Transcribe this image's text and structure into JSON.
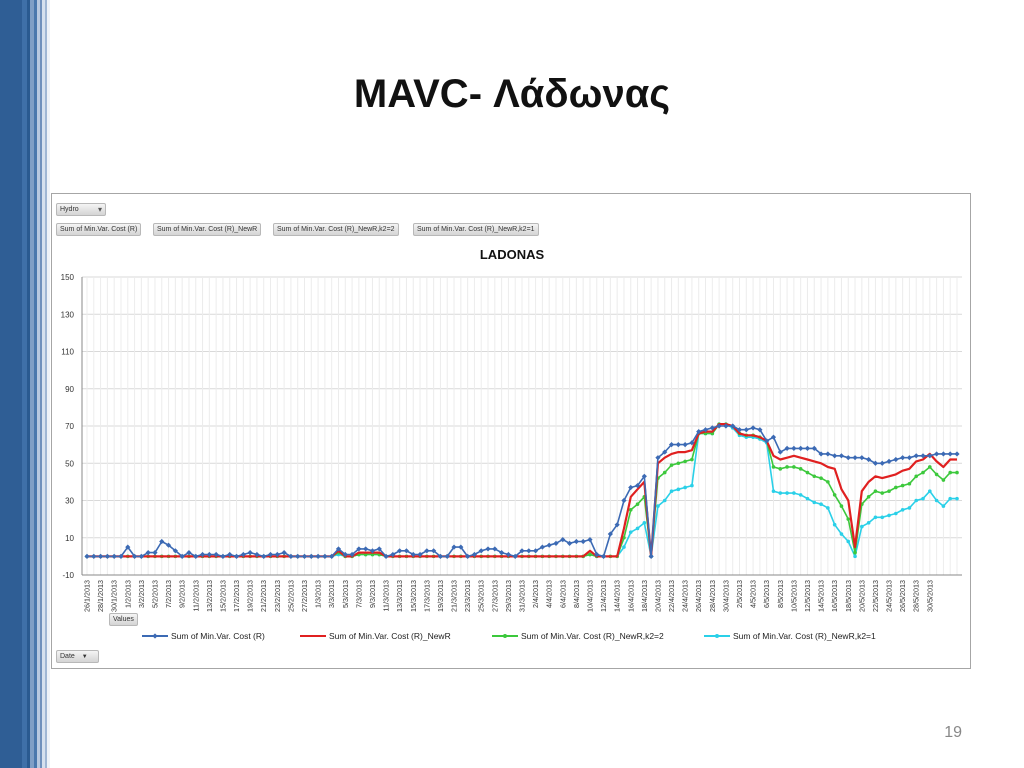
{
  "slide": {
    "title": "MAVC- Λάδωνας",
    "page_number": "19"
  },
  "pivot": {
    "filter_button": "Hydro",
    "filter_icon": "filter-icon",
    "value_fields": [
      "Sum of Min.Var. Cost (R)",
      "Sum of Min.Var. Cost (R)_NewR",
      "Sum of Min.Var. Cost (R)_NewR,k2=2",
      "Sum of Min.Var. Cost (R)_NewR,k2=1"
    ],
    "values_button": "Values",
    "axis_button": "Date",
    "dropdown_icon": "chevron-down-icon"
  },
  "chart_data": {
    "type": "line",
    "title": "LADONAS",
    "xlabel": "",
    "ylabel": "",
    "ylim": [
      -10,
      150
    ],
    "yticks": [
      -10,
      10,
      30,
      50,
      70,
      90,
      110,
      130,
      150
    ],
    "grid": true,
    "legend_position": "bottom",
    "x_tick_labels": [
      "26/1/2013",
      "28/1/2013",
      "30/1/2013",
      "1/2/2013",
      "3/2/2013",
      "5/2/2013",
      "7/2/2013",
      "9/2/2013",
      "11/2/2013",
      "13/2/2013",
      "15/2/2013",
      "17/2/2013",
      "19/2/2013",
      "21/2/2013",
      "23/2/2013",
      "25/2/2013",
      "27/2/2013",
      "1/3/2013",
      "3/3/2013",
      "5/3/2013",
      "7/3/2013",
      "9/3/2013",
      "11/3/2013",
      "13/3/2013",
      "15/3/2013",
      "17/3/2013",
      "19/3/2013",
      "21/3/2013",
      "23/3/2013",
      "25/3/2013",
      "27/3/2013",
      "29/3/2013",
      "31/3/2013",
      "2/4/2013",
      "4/4/2013",
      "6/4/2013",
      "8/4/2013",
      "10/4/2013",
      "12/4/2013",
      "14/4/2013",
      "16/4/2013",
      "18/4/2013",
      "20/4/2013",
      "22/4/2013",
      "24/4/2013",
      "26/4/2013",
      "28/4/2013",
      "30/4/2013",
      "2/5/2013",
      "4/5/2013",
      "6/5/2013",
      "8/5/2013",
      "10/5/2013",
      "12/5/2013",
      "14/5/2013",
      "16/5/2013",
      "18/5/2013",
      "20/5/2013",
      "22/5/2013",
      "24/5/2013",
      "26/5/2013",
      "28/5/2013",
      "30/5/2013"
    ],
    "series": [
      {
        "name": "Sum of Min.Var. Cost (R)",
        "color": "#3c6ab4",
        "marker": "diamond",
        "values": [
          0,
          0,
          0,
          0,
          0,
          0,
          5,
          0,
          0,
          2,
          2,
          8,
          6,
          3,
          0,
          2,
          0,
          1,
          1,
          1,
          0,
          1,
          0,
          1,
          2,
          1,
          0,
          1,
          1,
          2,
          0,
          0,
          0,
          0,
          0,
          0,
          0,
          4,
          1,
          1,
          4,
          4,
          3,
          4,
          0,
          1,
          3,
          3,
          1,
          1,
          3,
          3,
          0,
          0,
          5,
          5,
          0,
          1,
          3,
          4,
          4,
          2,
          1,
          0,
          3,
          3,
          3,
          5,
          6,
          7,
          9,
          7,
          8,
          8,
          9,
          1,
          0,
          12,
          17,
          30,
          37,
          38,
          43,
          0,
          53,
          56,
          60,
          60,
          60,
          61,
          67,
          68,
          69,
          70,
          70,
          70,
          68,
          68,
          69,
          68,
          62,
          64,
          56,
          58,
          58,
          58,
          58,
          58,
          55,
          55,
          54,
          54,
          53,
          53,
          53,
          52,
          50,
          50,
          51,
          52,
          53,
          53,
          54,
          54,
          54,
          55,
          55,
          55,
          55
        ]
      },
      {
        "name": "Sum of Min.Var. Cost (R)_NewR",
        "color": "#e02020",
        "marker": "none",
        "values": [
          0,
          0,
          0,
          0,
          0,
          0,
          0,
          0,
          0,
          0,
          0,
          0,
          0,
          0,
          0,
          0,
          0,
          0,
          0,
          0,
          0,
          0,
          0,
          0,
          0,
          0,
          0,
          0,
          0,
          0,
          0,
          0,
          0,
          0,
          0,
          0,
          0,
          3,
          0,
          0,
          2,
          2,
          2,
          2,
          0,
          0,
          0,
          0,
          0,
          0,
          0,
          0,
          0,
          0,
          0,
          0,
          0,
          0,
          0,
          0,
          0,
          0,
          0,
          0,
          0,
          0,
          0,
          0,
          0,
          0,
          0,
          0,
          0,
          0,
          3,
          0,
          0,
          0,
          0,
          15,
          32,
          36,
          40,
          0,
          50,
          53,
          55,
          56,
          56,
          57,
          66,
          67,
          67,
          71,
          71,
          70,
          66,
          65,
          65,
          64,
          62,
          54,
          52,
          53,
          54,
          53,
          52,
          51,
          50,
          48,
          47,
          36,
          30,
          5,
          35,
          40,
          43,
          42,
          43,
          44,
          46,
          47,
          51,
          52,
          55,
          51,
          48,
          52,
          52
        ]
      },
      {
        "name": "Sum of Min.Var. Cost (R)_NewR,k2=2",
        "color": "#3cc83c",
        "marker": "circle",
        "values": [
          0,
          0,
          0,
          0,
          0,
          0,
          0,
          0,
          0,
          0,
          0,
          0,
          0,
          0,
          0,
          0,
          0,
          0,
          0,
          0,
          0,
          0,
          0,
          0,
          0,
          0,
          0,
          0,
          0,
          0,
          0,
          0,
          0,
          0,
          0,
          0,
          0,
          2,
          0,
          0,
          1,
          1,
          1,
          1,
          0,
          0,
          0,
          0,
          0,
          0,
          0,
          0,
          0,
          0,
          0,
          0,
          0,
          0,
          0,
          0,
          0,
          0,
          0,
          0,
          0,
          0,
          0,
          0,
          0,
          0,
          0,
          0,
          0,
          0,
          1,
          0,
          0,
          0,
          0,
          10,
          25,
          28,
          32,
          0,
          42,
          45,
          49,
          50,
          51,
          52,
          66,
          66,
          66,
          71,
          71,
          70,
          66,
          65,
          65,
          64,
          62,
          48,
          47,
          48,
          48,
          47,
          45,
          43,
          42,
          40,
          33,
          27,
          20,
          2,
          28,
          32,
          35,
          34,
          35,
          37,
          38,
          39,
          43,
          45,
          48,
          44,
          41,
          45,
          45
        ]
      },
      {
        "name": "Sum of Min.Var. Cost (R)_NewR,k2=1",
        "color": "#2ad0e8",
        "marker": "circle",
        "values": [
          0,
          0,
          0,
          0,
          0,
          0,
          0,
          0,
          0,
          0,
          0,
          0,
          0,
          0,
          0,
          0,
          0,
          0,
          0,
          0,
          0,
          0,
          0,
          0,
          0,
          0,
          0,
          0,
          0,
          0,
          0,
          0,
          0,
          0,
          0,
          0,
          0,
          1,
          0,
          0,
          1,
          1,
          1,
          1,
          0,
          0,
          0,
          0,
          0,
          0,
          0,
          0,
          0,
          0,
          0,
          0,
          0,
          0,
          0,
          0,
          0,
          0,
          0,
          0,
          0,
          0,
          0,
          0,
          0,
          0,
          0,
          0,
          0,
          0,
          1,
          0,
          0,
          0,
          0,
          5,
          13,
          15,
          18,
          0,
          27,
          30,
          35,
          36,
          37,
          38,
          66,
          66,
          66,
          71,
          71,
          69,
          65,
          64,
          64,
          63,
          61,
          35,
          34,
          34,
          34,
          33,
          31,
          29,
          28,
          26,
          17,
          12,
          8,
          0,
          16,
          18,
          21,
          21,
          22,
          23,
          25,
          26,
          30,
          31,
          35,
          30,
          27,
          31,
          31
        ]
      }
    ]
  }
}
